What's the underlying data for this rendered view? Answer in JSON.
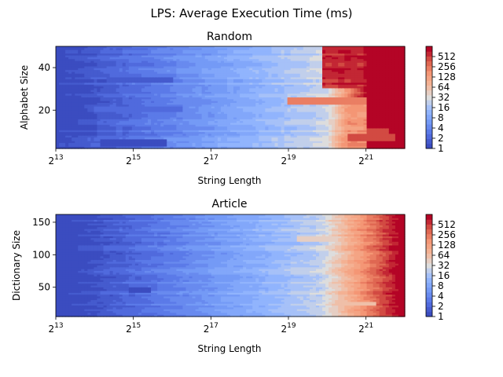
{
  "figure_title": "LPS: Average Execution Time (ms)",
  "colors": {
    "colormap": "coolwarm",
    "low": "#3b4cc0",
    "mid": "#dddddd",
    "high": "#b40426"
  },
  "chart_data": [
    {
      "type": "heatmap",
      "title": "Random",
      "xlabel": "String Length",
      "ylabel": "Alphabet Size",
      "x_scale": "log2",
      "xlim": [
        8192,
        4194304
      ],
      "x_ticks": [
        8192,
        32768,
        131072,
        524288,
        2097152
      ],
      "x_tick_labels": [
        {
          "base": "2",
          "exp": "13"
        },
        {
          "base": "2",
          "exp": "15"
        },
        {
          "base": "2",
          "exp": "17"
        },
        {
          "base": "2",
          "exp": "19"
        },
        {
          "base": "2",
          "exp": "21"
        }
      ],
      "ylim": [
        2,
        50
      ],
      "y_ticks": [
        20,
        40
      ],
      "y_tick_labels": [
        "20",
        "40"
      ],
      "value_description": "average execution time in ms, log2 color scale",
      "colorbar": {
        "scale": "log2",
        "min": 1,
        "max": 1024,
        "ticks": [
          1,
          2,
          4,
          8,
          16,
          32,
          64,
          128,
          256,
          512
        ],
        "tick_labels": [
          "1",
          "2",
          "4",
          "8",
          "16",
          "32",
          "64",
          "128",
          "256",
          "512"
        ]
      },
      "anomalies": [
        {
          "x_range": [
            524288,
            2097152
          ],
          "y": 24.5,
          "value": 256
        },
        {
          "x_range": [
            2097152,
            3200000
          ],
          "y": 9.5,
          "value": 512
        },
        {
          "x_range": [
            1500000,
            3500000
          ],
          "y": 7.0,
          "value": 512
        },
        {
          "x_range": [
            20000,
            65536
          ],
          "y": 34,
          "value": 1.8
        },
        {
          "x_range": [
            16000,
            80000
          ],
          "y": 20.5,
          "value": 2
        },
        {
          "x_range": [
            18000,
            60000
          ],
          "y": 4.5,
          "value": 1.3
        }
      ]
    },
    {
      "type": "heatmap",
      "title": "Article",
      "xlabel": "String Length",
      "ylabel": "Dictionary Size",
      "x_scale": "log2",
      "xlim": [
        8192,
        4194304
      ],
      "x_ticks": [
        8192,
        32768,
        131072,
        524288,
        2097152
      ],
      "x_tick_labels": [
        {
          "base": "2",
          "exp": "13"
        },
        {
          "base": "2",
          "exp": "15"
        },
        {
          "base": "2",
          "exp": "17"
        },
        {
          "base": "2",
          "exp": "19"
        },
        {
          "base": "2",
          "exp": "21"
        }
      ],
      "ylim": [
        5,
        162
      ],
      "y_ticks": [
        50,
        100,
        150
      ],
      "y_tick_labels": [
        "50",
        "100",
        "150"
      ],
      "value_description": "average execution time in ms, log2 color scale",
      "colorbar": {
        "scale": "log2",
        "min": 1,
        "max": 1024,
        "ticks": [
          1,
          2,
          4,
          8,
          16,
          32,
          64,
          128,
          256,
          512
        ],
        "tick_labels": [
          "1",
          "2",
          "4",
          "8",
          "16",
          "32",
          "64",
          "128",
          "256",
          "512"
        ]
      },
      "anomalies": [
        {
          "x_range": [
            30000,
            45000
          ],
          "y": 45,
          "value": 1.2
        },
        {
          "x_range": [
            600000,
            1200000
          ],
          "y": 125,
          "value": 40
        },
        {
          "x_range": [
            1200000,
            2500000
          ],
          "y": 25,
          "value": 64
        }
      ]
    }
  ]
}
